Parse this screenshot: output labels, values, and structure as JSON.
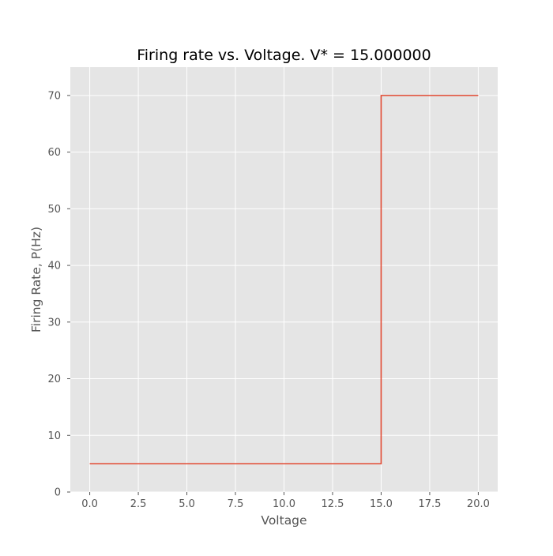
{
  "chart_data": {
    "type": "line",
    "title": "Firing rate vs. Voltage. V* = 15.000000",
    "xlabel": "Voltage",
    "ylabel": "Firing Rate, P(Hz)",
    "xlim": [
      -1.0,
      21.0
    ],
    "ylim": [
      0,
      75
    ],
    "xticks": [
      0.0,
      2.5,
      5.0,
      7.5,
      10.0,
      12.5,
      15.0,
      17.5,
      20.0
    ],
    "xtick_labels": [
      "0.0",
      "2.5",
      "5.0",
      "7.5",
      "10.0",
      "12.5",
      "15.0",
      "17.5",
      "20.0"
    ],
    "yticks": [
      0,
      10,
      20,
      30,
      40,
      50,
      60,
      70
    ],
    "ytick_labels": [
      "0",
      "10",
      "20",
      "30",
      "40",
      "50",
      "60",
      "70"
    ],
    "grid": true,
    "series": [
      {
        "color": "#E24A33",
        "x": [
          0.0,
          15.0,
          15.0,
          20.0
        ],
        "y": [
          5,
          5,
          70,
          70
        ]
      }
    ],
    "colors": {
      "plot_background": "#E5E5E5",
      "grid": "#FFFFFF",
      "line": "#E24A33",
      "tick_text": "#555555",
      "title_text": "#000000"
    }
  }
}
